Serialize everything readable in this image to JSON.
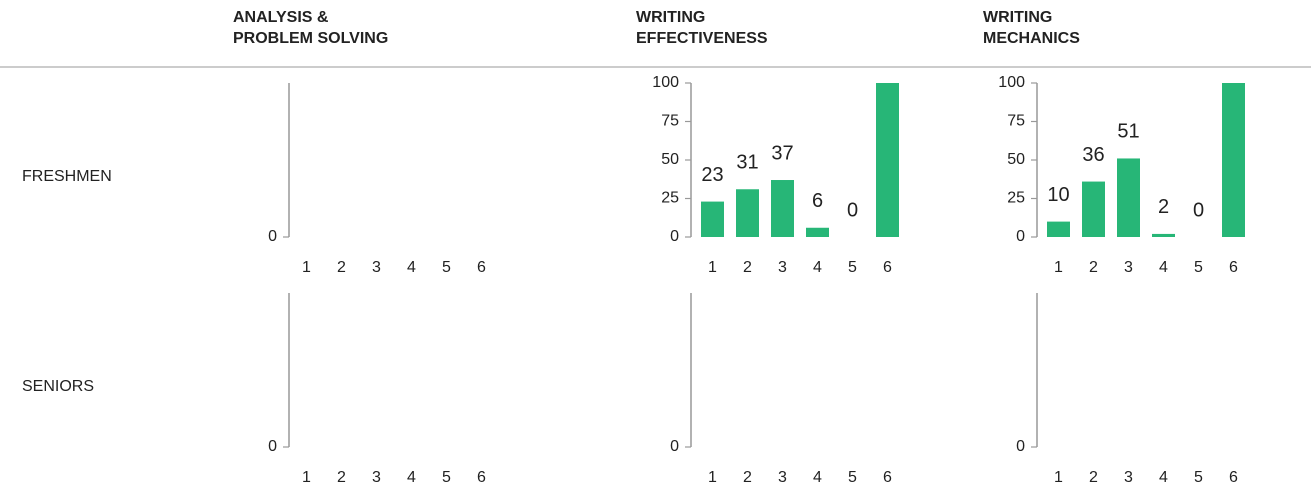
{
  "columns": [
    "ANALYSIS &",
    "PROBLEM SOLVING",
    "WRITING",
    "EFFECTIVENESS",
    "WRITING",
    "MECHANICS"
  ],
  "rows": [
    "FRESHMEN",
    "SENIORS"
  ],
  "chart_data": [
    {
      "type": "bar",
      "categories": [
        "1",
        "2",
        "3",
        "4",
        "5",
        "6"
      ],
      "ylim": [
        0,
        100
      ],
      "yticks": [
        0
      ],
      "color": "#27b677"
    },
    {
      "type": "bar",
      "categories": [
        "1",
        "2",
        "3",
        "4",
        "5",
        "6"
      ],
      "values": [
        23,
        31,
        37,
        6,
        0,
        100
      ],
      "value_labels": [
        "23",
        "31",
        "37",
        "6",
        "0",
        null
      ],
      "ylim": [
        0,
        100
      ],
      "yticks": [
        0,
        25,
        50,
        75,
        100
      ],
      "color": "#27b677"
    },
    {
      "type": "bar",
      "categories": [
        "1",
        "2",
        "3",
        "4",
        "5",
        "6"
      ],
      "values": [
        10,
        36,
        51,
        2,
        0,
        100
      ],
      "value_labels": [
        "10",
        "36",
        "51",
        "2",
        "0",
        null
      ],
      "ylim": [
        0,
        100
      ],
      "yticks": [
        0,
        25,
        50,
        75,
        100
      ],
      "color": "#27b677"
    },
    {
      "type": "bar",
      "categories": [
        "1",
        "2",
        "3",
        "4",
        "5",
        "6"
      ],
      "ylim": [
        0,
        100
      ],
      "yticks": [
        0
      ],
      "color": "#27b677"
    },
    {
      "type": "bar",
      "categories": [
        "1",
        "2",
        "3",
        "4",
        "5",
        "6"
      ],
      "ylim": [
        0,
        100
      ],
      "yticks": [
        0
      ],
      "color": "#27b677"
    },
    {
      "type": "bar",
      "categories": [
        "1",
        "2",
        "3",
        "4",
        "5",
        "6"
      ],
      "ylim": [
        0,
        100
      ],
      "yticks": [
        0
      ],
      "color": "#27b677"
    }
  ]
}
